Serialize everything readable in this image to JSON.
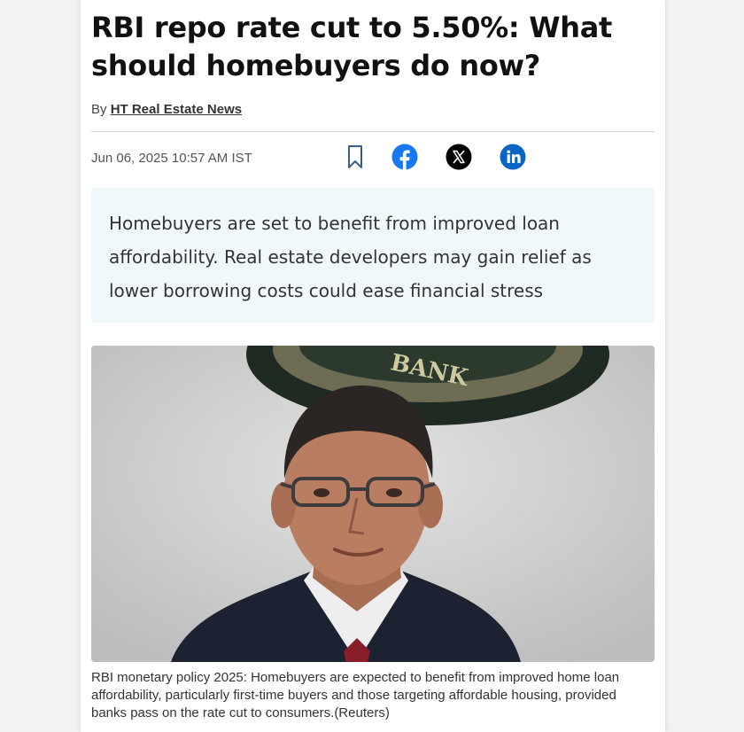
{
  "article": {
    "headline": "RBI repo rate cut to 5.50%: What should homebuyers do now?",
    "byline_prefix": "By",
    "author": "HT Real Estate News",
    "dateline": "Jun 06, 2025 10:57 AM IST",
    "summary": "Homebuyers are set to benefit from improved loan affordability. Real estate developers may gain relief as lower borrowing costs could ease financial stress",
    "image": {
      "seal_text": "BANK",
      "caption": "RBI monetary policy 2025: Homebuyers are expected to benefit from improved home loan affordability, particularly first-time buyers and those targeting affordable housing, provided banks pass on the rate cut to consumers.(Reuters)"
    }
  },
  "share": [
    {
      "icon": "bookmark-icon",
      "color": "#3a5f86"
    },
    {
      "icon": "facebook-icon",
      "color": "#1877f2"
    },
    {
      "icon": "x-icon",
      "color": "#000000"
    },
    {
      "icon": "linkedin-icon",
      "color": "#0a66c2"
    }
  ]
}
